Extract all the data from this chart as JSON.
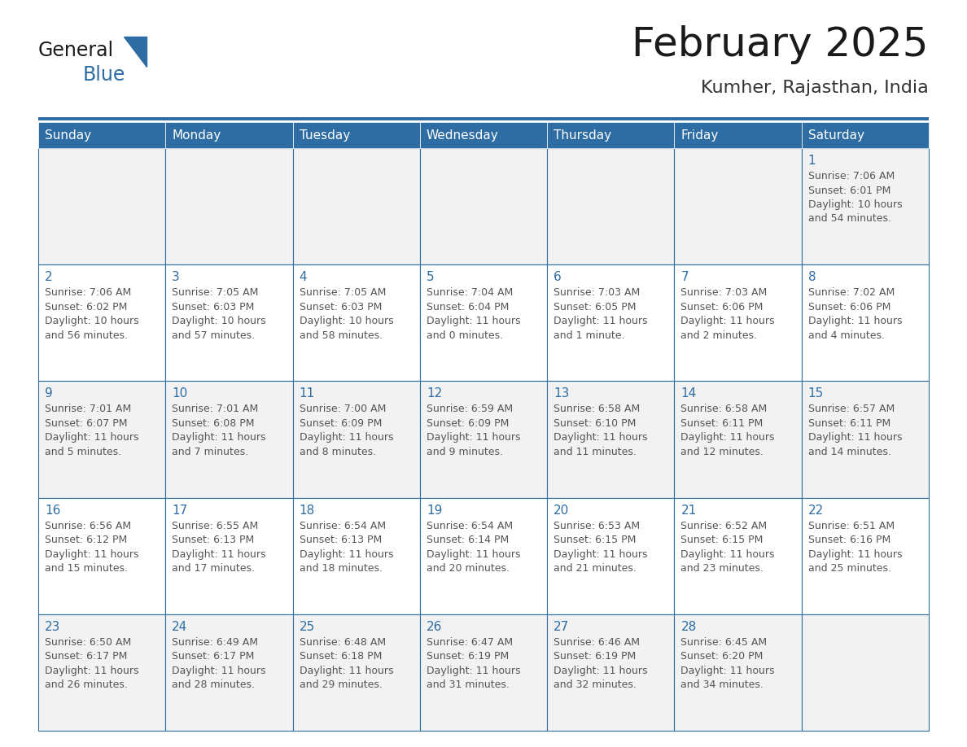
{
  "title": "February 2025",
  "subtitle": "Kumher, Rajasthan, India",
  "header_bg": "#2E6DA4",
  "header_text_color": "#FFFFFF",
  "cell_bg_odd": "#F2F2F2",
  "cell_bg_even": "#FFFFFF",
  "day_number_color": "#2E6DA4",
  "cell_text_color": "#555555",
  "border_color": "#2E6DA4",
  "days_of_week": [
    "Sunday",
    "Monday",
    "Tuesday",
    "Wednesday",
    "Thursday",
    "Friday",
    "Saturday"
  ],
  "calendar_data": [
    [
      null,
      null,
      null,
      null,
      null,
      null,
      {
        "day": "1",
        "sunrise": "7:06 AM",
        "sunset": "6:01 PM",
        "daylight": "10 hours\nand 54 minutes."
      }
    ],
    [
      {
        "day": "2",
        "sunrise": "7:06 AM",
        "sunset": "6:02 PM",
        "daylight": "10 hours\nand 56 minutes."
      },
      {
        "day": "3",
        "sunrise": "7:05 AM",
        "sunset": "6:03 PM",
        "daylight": "10 hours\nand 57 minutes."
      },
      {
        "day": "4",
        "sunrise": "7:05 AM",
        "sunset": "6:03 PM",
        "daylight": "10 hours\nand 58 minutes."
      },
      {
        "day": "5",
        "sunrise": "7:04 AM",
        "sunset": "6:04 PM",
        "daylight": "11 hours\nand 0 minutes."
      },
      {
        "day": "6",
        "sunrise": "7:03 AM",
        "sunset": "6:05 PM",
        "daylight": "11 hours\nand 1 minute."
      },
      {
        "day": "7",
        "sunrise": "7:03 AM",
        "sunset": "6:06 PM",
        "daylight": "11 hours\nand 2 minutes."
      },
      {
        "day": "8",
        "sunrise": "7:02 AM",
        "sunset": "6:06 PM",
        "daylight": "11 hours\nand 4 minutes."
      }
    ],
    [
      {
        "day": "9",
        "sunrise": "7:01 AM",
        "sunset": "6:07 PM",
        "daylight": "11 hours\nand 5 minutes."
      },
      {
        "day": "10",
        "sunrise": "7:01 AM",
        "sunset": "6:08 PM",
        "daylight": "11 hours\nand 7 minutes."
      },
      {
        "day": "11",
        "sunrise": "7:00 AM",
        "sunset": "6:09 PM",
        "daylight": "11 hours\nand 8 minutes."
      },
      {
        "day": "12",
        "sunrise": "6:59 AM",
        "sunset": "6:09 PM",
        "daylight": "11 hours\nand 9 minutes."
      },
      {
        "day": "13",
        "sunrise": "6:58 AM",
        "sunset": "6:10 PM",
        "daylight": "11 hours\nand 11 minutes."
      },
      {
        "day": "14",
        "sunrise": "6:58 AM",
        "sunset": "6:11 PM",
        "daylight": "11 hours\nand 12 minutes."
      },
      {
        "day": "15",
        "sunrise": "6:57 AM",
        "sunset": "6:11 PM",
        "daylight": "11 hours\nand 14 minutes."
      }
    ],
    [
      {
        "day": "16",
        "sunrise": "6:56 AM",
        "sunset": "6:12 PM",
        "daylight": "11 hours\nand 15 minutes."
      },
      {
        "day": "17",
        "sunrise": "6:55 AM",
        "sunset": "6:13 PM",
        "daylight": "11 hours\nand 17 minutes."
      },
      {
        "day": "18",
        "sunrise": "6:54 AM",
        "sunset": "6:13 PM",
        "daylight": "11 hours\nand 18 minutes."
      },
      {
        "day": "19",
        "sunrise": "6:54 AM",
        "sunset": "6:14 PM",
        "daylight": "11 hours\nand 20 minutes."
      },
      {
        "day": "20",
        "sunrise": "6:53 AM",
        "sunset": "6:15 PM",
        "daylight": "11 hours\nand 21 minutes."
      },
      {
        "day": "21",
        "sunrise": "6:52 AM",
        "sunset": "6:15 PM",
        "daylight": "11 hours\nand 23 minutes."
      },
      {
        "day": "22",
        "sunrise": "6:51 AM",
        "sunset": "6:16 PM",
        "daylight": "11 hours\nand 25 minutes."
      }
    ],
    [
      {
        "day": "23",
        "sunrise": "6:50 AM",
        "sunset": "6:17 PM",
        "daylight": "11 hours\nand 26 minutes."
      },
      {
        "day": "24",
        "sunrise": "6:49 AM",
        "sunset": "6:17 PM",
        "daylight": "11 hours\nand 28 minutes."
      },
      {
        "day": "25",
        "sunrise": "6:48 AM",
        "sunset": "6:18 PM",
        "daylight": "11 hours\nand 29 minutes."
      },
      {
        "day": "26",
        "sunrise": "6:47 AM",
        "sunset": "6:19 PM",
        "daylight": "11 hours\nand 31 minutes."
      },
      {
        "day": "27",
        "sunrise": "6:46 AM",
        "sunset": "6:19 PM",
        "daylight": "11 hours\nand 32 minutes."
      },
      {
        "day": "28",
        "sunrise": "6:45 AM",
        "sunset": "6:20 PM",
        "daylight": "11 hours\nand 34 minutes."
      },
      null
    ]
  ],
  "fig_width": 11.88,
  "fig_height": 9.18,
  "dpi": 100,
  "title_fontsize": 36,
  "subtitle_fontsize": 16,
  "dow_fontsize": 11,
  "day_num_fontsize": 11,
  "cell_text_fontsize": 9,
  "logo_general_fontsize": 17,
  "logo_blue_fontsize": 17
}
